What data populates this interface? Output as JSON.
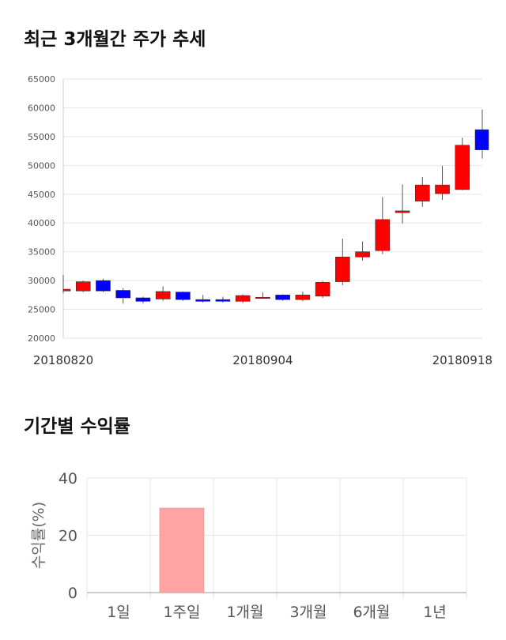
{
  "sections": {
    "candle_title": "최근 3개월간 주가 추세",
    "returns_title": "기간별 수익률"
  },
  "colors": {
    "up": "#ff0000",
    "down": "#0000ff",
    "grid": "#e6e6e6",
    "bar": "#ffa3a3"
  },
  "chart_data": [
    {
      "type": "candlestick",
      "title": "최근 3개월간 주가 추세",
      "ylim": [
        20000,
        65000
      ],
      "yticks": [
        20000,
        25000,
        30000,
        35000,
        40000,
        45000,
        50000,
        55000,
        60000,
        65000
      ],
      "xtick_labels": [
        {
          "index": 0,
          "label": "20180820"
        },
        {
          "index": 10,
          "label": "20180904"
        },
        {
          "index": 20,
          "label": "20180918"
        }
      ],
      "candles": [
        {
          "o": 28200,
          "h": 31000,
          "l": 27800,
          "c": 28500
        },
        {
          "o": 28200,
          "h": 30000,
          "l": 28000,
          "c": 29800
        },
        {
          "o": 30000,
          "h": 30300,
          "l": 28000,
          "c": 28200
        },
        {
          "o": 28300,
          "h": 28700,
          "l": 26000,
          "c": 27000
        },
        {
          "o": 27000,
          "h": 27200,
          "l": 26000,
          "c": 26400
        },
        {
          "o": 26800,
          "h": 29000,
          "l": 26500,
          "c": 28100
        },
        {
          "o": 28000,
          "h": 28100,
          "l": 26500,
          "c": 26700
        },
        {
          "o": 26700,
          "h": 27500,
          "l": 26200,
          "c": 26400
        },
        {
          "o": 26700,
          "h": 27200,
          "l": 26200,
          "c": 26400
        },
        {
          "o": 26400,
          "h": 27600,
          "l": 26100,
          "c": 27400
        },
        {
          "o": 27100,
          "h": 28000,
          "l": 26900,
          "c": 27100
        },
        {
          "o": 27500,
          "h": 27600,
          "l": 26500,
          "c": 26700
        },
        {
          "o": 26700,
          "h": 28100,
          "l": 26400,
          "c": 27500
        },
        {
          "o": 27300,
          "h": 29900,
          "l": 27000,
          "c": 29700
        },
        {
          "o": 29800,
          "h": 37300,
          "l": 29200,
          "c": 34100
        },
        {
          "o": 34100,
          "h": 36800,
          "l": 33500,
          "c": 35000
        },
        {
          "o": 35200,
          "h": 44500,
          "l": 34600,
          "c": 40600
        },
        {
          "o": 41800,
          "h": 46700,
          "l": 39900,
          "c": 42100
        },
        {
          "o": 43800,
          "h": 48000,
          "l": 42800,
          "c": 46600
        },
        {
          "o": 45100,
          "h": 49900,
          "l": 44000,
          "c": 46600
        },
        {
          "o": 45800,
          "h": 54800,
          "l": 45700,
          "c": 53500
        },
        {
          "o": 56200,
          "h": 59700,
          "l": 51200,
          "c": 52700
        }
      ]
    },
    {
      "type": "bar",
      "title": "기간별 수익률",
      "categories": [
        "1일",
        "1주일",
        "1개월",
        "3개월",
        "6개월",
        "1년"
      ],
      "values": [
        null,
        29.5,
        null,
        null,
        null,
        null
      ],
      "ylabel": "수익률(%)",
      "ylim": [
        0,
        40
      ],
      "yticks": [
        0,
        20,
        40
      ]
    }
  ]
}
